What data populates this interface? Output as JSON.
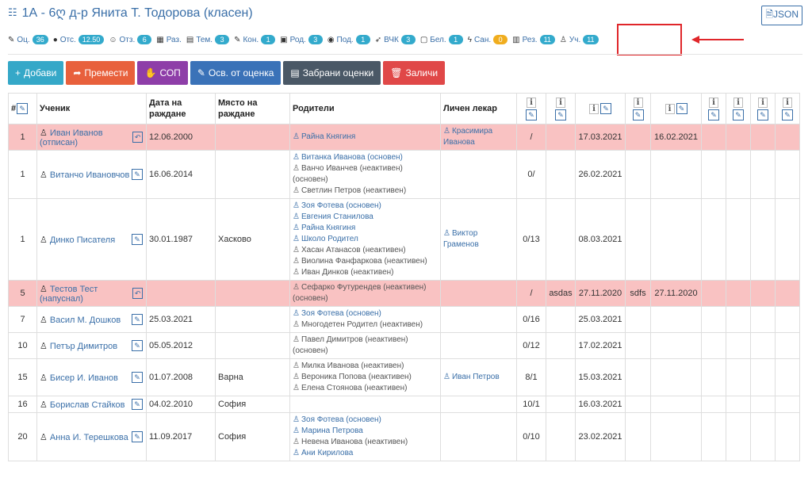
{
  "header": {
    "title": "1А - 6ღ д-р Янита Т. Тодорова (класен)",
    "json_label": "JSON"
  },
  "tabs": [
    {
      "icon": "pencil-icon",
      "label": "Оц.",
      "count": "36",
      "color": "blue"
    },
    {
      "icon": "info-icon",
      "label": "Отс.",
      "count": "12.50",
      "color": "blue"
    },
    {
      "icon": "users-icon",
      "label": "Отз.",
      "count": "6",
      "color": "blue"
    },
    {
      "icon": "table-icon",
      "label": "Раз.",
      "count": "",
      "color": "blue"
    },
    {
      "icon": "list-icon",
      "label": "Тем.",
      "count": "3",
      "color": "blue"
    },
    {
      "icon": "edit-icon",
      "label": "Кон.",
      "count": "1",
      "color": "blue"
    },
    {
      "icon": "calendar-icon",
      "label": "Род.",
      "count": "3",
      "color": "blue"
    },
    {
      "icon": "eye-icon",
      "label": "Под.",
      "count": "1",
      "color": "blue"
    },
    {
      "icon": "rocket-icon",
      "label": "ВЧК",
      "count": "3",
      "color": "blue"
    },
    {
      "icon": "note-icon",
      "label": "Бел.",
      "count": "1",
      "color": "blue"
    },
    {
      "icon": "bolt-icon",
      "label": "Сан.",
      "count": "0",
      "color": "yellow"
    },
    {
      "icon": "chart-icon",
      "label": "Рез.",
      "count": "11",
      "color": "blue"
    },
    {
      "icon": "student-icon",
      "label": "Уч.",
      "count": "11",
      "color": "blue"
    }
  ],
  "toolbar": [
    {
      "label": "Добави",
      "icon": "plus-icon",
      "color": "#35a8c8"
    },
    {
      "label": "Премести",
      "icon": "share-icon",
      "color": "#e8603c"
    },
    {
      "label": "СОП",
      "icon": "hand-icon",
      "color": "#8e3ea8"
    },
    {
      "label": "Осв. от оценка",
      "icon": "pencil-icon",
      "color": "#3a72b8"
    },
    {
      "label": "Забрани оценки",
      "icon": "book-icon",
      "color": "#4a5866"
    },
    {
      "label": "Заличи",
      "icon": "trash-icon",
      "color": "#e04848"
    }
  ],
  "columns": {
    "num": "#",
    "student": "Ученик",
    "birth": "Дата на раждане",
    "place": "Място на раждане",
    "parents": "Родители",
    "doctor": "Личен лекар"
  },
  "rows": [
    {
      "num": "1",
      "student": "Иван Иванов (отписан)",
      "pink": true,
      "birth": "12.06.2000",
      "place": "",
      "parents": [
        {
          "name": "Райна Княгиня",
          "active": true
        }
      ],
      "doctor": "Красимира Иванова",
      "c1": "/",
      "c2": "",
      "c3": "17.03.2021",
      "c4": "",
      "c5": "16.02.2021",
      "action": "undo"
    },
    {
      "num": "1",
      "student": "Витанчо Ивановчов",
      "pink": false,
      "birth": "16.06.2014",
      "place": "",
      "parents": [
        {
          "name": "Витанка Иванова (основен)",
          "active": true
        },
        {
          "name": "Ванчо Иванчев (неактивен) (основен)",
          "active": false
        },
        {
          "name": "Светлин Петров (неактивен)",
          "active": false
        }
      ],
      "doctor": "",
      "c1": "0/",
      "c2": "",
      "c3": "26.02.2021",
      "c4": "",
      "c5": "",
      "action": "edit"
    },
    {
      "num": "1",
      "student": "Динко Писателя",
      "pink": false,
      "birth": "30.01.1987",
      "place": "Хасково",
      "parents": [
        {
          "name": "Зоя Фотева (основен)",
          "active": true
        },
        {
          "name": "Евгения Станилова",
          "active": true
        },
        {
          "name": "Райна Княгиня",
          "active": true
        },
        {
          "name": "Школо Родител",
          "active": true
        },
        {
          "name": "Хасан Атанасов (неактивен)",
          "active": false
        },
        {
          "name": "Виолина Фанфаркова (неактивен)",
          "active": false
        },
        {
          "name": "Иван Динков (неактивен)",
          "active": false
        }
      ],
      "doctor": "Виктор Граменов",
      "c1": "0/13",
      "c2": "",
      "c3": "08.03.2021",
      "c4": "",
      "c5": "",
      "action": "edit"
    },
    {
      "num": "5",
      "student": "Тестов Тест (напуснал)",
      "pink": true,
      "birth": "",
      "place": "",
      "parents": [
        {
          "name": "Сефарко Футурендев (неактивен) (основен)",
          "active": false
        }
      ],
      "doctor": "",
      "c1": "/",
      "c2": "asdas",
      "c3": "27.11.2020",
      "c4": "sdfs",
      "c5": "27.11.2020",
      "action": "undo"
    },
    {
      "num": "7",
      "student": "Васил М. Дошков",
      "pink": false,
      "birth": "25.03.2021",
      "place": "",
      "parents": [
        {
          "name": "Зоя Фотева (основен)",
          "active": true
        },
        {
          "name": "Многодетен Родител (неактивен)",
          "active": false
        }
      ],
      "doctor": "",
      "c1": "0/16",
      "c2": "",
      "c3": "25.03.2021",
      "c4": "",
      "c5": "",
      "action": "edit"
    },
    {
      "num": "10",
      "student": "Петър Димитров",
      "pink": false,
      "birth": "05.05.2012",
      "place": "",
      "parents": [
        {
          "name": "Павел Димитров (неактивен) (основен)",
          "active": false
        }
      ],
      "doctor": "",
      "c1": "0/12",
      "c2": "",
      "c3": "17.02.2021",
      "c4": "",
      "c5": "",
      "action": "edit"
    },
    {
      "num": "15",
      "student": "Бисер И. Иванов",
      "pink": false,
      "birth": "01.07.2008",
      "place": "Варна",
      "parents": [
        {
          "name": "Милка Иванова (неактивен)",
          "active": false
        },
        {
          "name": "Вероника Попова (неактивен)",
          "active": false
        },
        {
          "name": "Елена Стоянова (неактивен)",
          "active": false
        }
      ],
      "doctor": "Иван Петров",
      "c1": "8/1",
      "c2": "",
      "c3": "15.03.2021",
      "c4": "",
      "c5": "",
      "action": "edit"
    },
    {
      "num": "16",
      "student": "Борислав Стайков",
      "pink": false,
      "birth": "04.02.2010",
      "place": "София",
      "parents": [],
      "doctor": "",
      "c1": "10/1",
      "c2": "",
      "c3": "16.03.2021",
      "c4": "",
      "c5": "",
      "action": "edit"
    },
    {
      "num": "20",
      "student": "Анна И. Терешкова",
      "pink": false,
      "birth": "11.09.2017",
      "place": "София",
      "parents": [
        {
          "name": "Зоя Фотева (основен)",
          "active": true
        },
        {
          "name": "Марина Петрова",
          "active": true
        },
        {
          "name": "Невена Иванова (неактивен)",
          "active": false
        },
        {
          "name": "Ани Кирилова",
          "active": true
        }
      ],
      "doctor": "",
      "c1": "0/10",
      "c2": "",
      "c3": "23.02.2021",
      "c4": "",
      "c5": "",
      "action": "edit"
    }
  ]
}
